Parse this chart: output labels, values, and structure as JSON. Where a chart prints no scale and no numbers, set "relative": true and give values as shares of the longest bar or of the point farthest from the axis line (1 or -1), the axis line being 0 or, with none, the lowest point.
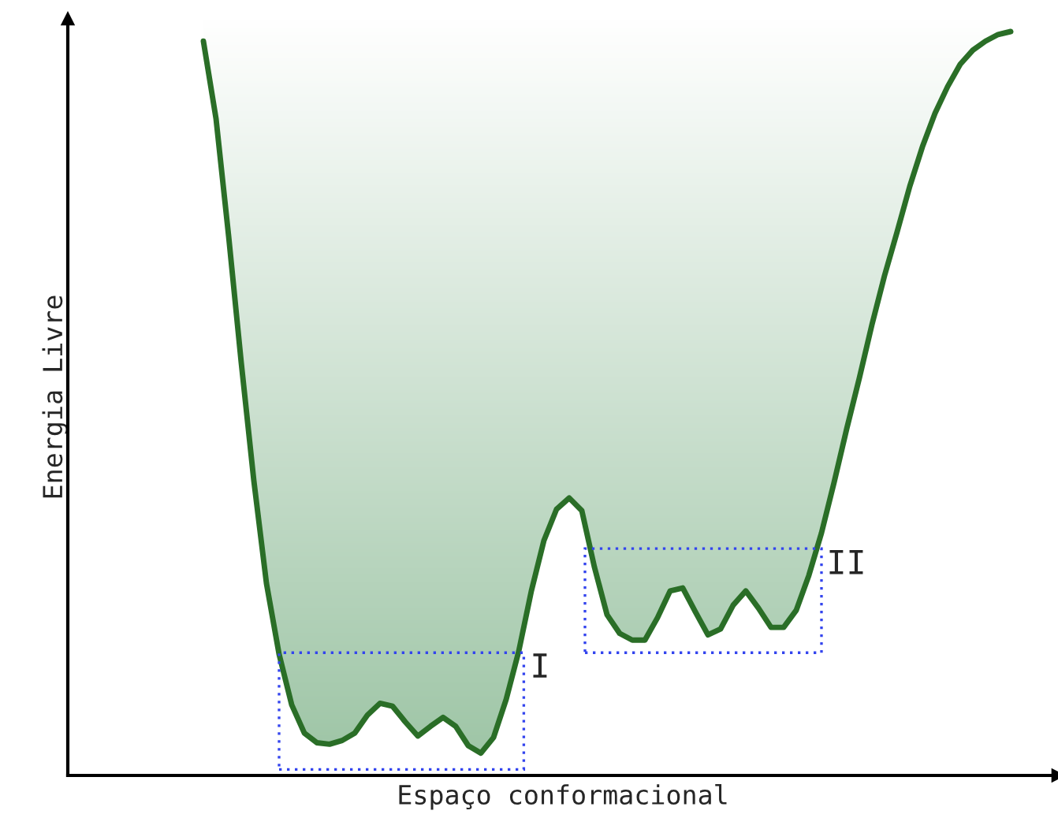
{
  "chart_data": {
    "type": "line",
    "relative": true,
    "xlabel": "Espaço conformacional",
    "ylabel": "Energia Livre",
    "annotations": [
      "I",
      "II"
    ],
    "marker": "none",
    "line_style": "solid",
    "categories": [
      null,
      null,
      null,
      null,
      null,
      null,
      null,
      null,
      null,
      null,
      null,
      null,
      null,
      null,
      null,
      null,
      null,
      null,
      null,
      null,
      null,
      null,
      null,
      null,
      null,
      null,
      null,
      null,
      null,
      null,
      null,
      null,
      null,
      null,
      null,
      null,
      null,
      null,
      null,
      null,
      null,
      null,
      null,
      null,
      null,
      null,
      null,
      null,
      null,
      null,
      null,
      null,
      null,
      null,
      null,
      null,
      null,
      null,
      null,
      null,
      null,
      null,
      null,
      null,
      null
    ],
    "series": [
      {
        "color": "#2a6e27",
        "values": [
          0.987,
          0.883,
          0.725,
          0.555,
          0.396,
          0.258,
          0.163,
          0.095,
          0.057,
          0.044,
          0.042,
          0.047,
          0.057,
          0.081,
          0.097,
          0.093,
          0.072,
          0.053,
          0.066,
          0.078,
          0.066,
          0.04,
          0.03,
          0.051,
          0.102,
          0.167,
          0.248,
          0.316,
          0.358,
          0.373,
          0.356,
          0.28,
          0.216,
          0.191,
          0.182,
          0.182,
          0.212,
          0.248,
          0.252,
          0.22,
          0.189,
          0.197,
          0.229,
          0.248,
          0.225,
          0.199,
          0.199,
          0.222,
          0.269,
          0.326,
          0.394,
          0.466,
          0.534,
          0.606,
          0.672,
          0.731,
          0.792,
          0.845,
          0.89,
          0.926,
          0.956,
          0.975,
          0.987,
          0.996,
          1
        ]
      }
    ]
  }
}
